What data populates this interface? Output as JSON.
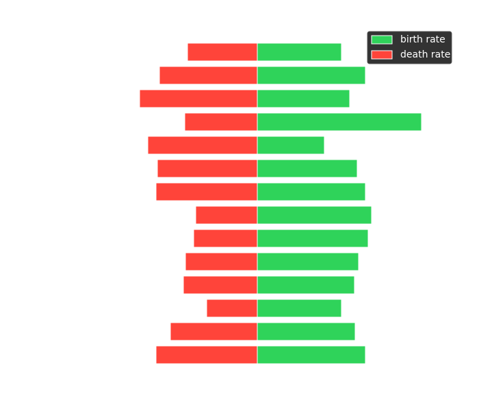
{
  "chart_data": {
    "type": "diverging-bar",
    "series": [
      {
        "name": "birth rate",
        "color": "#2fd35a",
        "values": [
          12.3,
          15.8,
          13.5,
          24.0,
          9.8,
          14.6,
          15.8,
          16.7,
          16.2,
          14.8,
          14.2,
          12.3,
          14.3,
          15.8
        ]
      },
      {
        "name": "death rate",
        "color": "#ff443a",
        "values": [
          -10.2,
          -14.3,
          -17.2,
          -10.6,
          -16.0,
          -14.6,
          -14.8,
          -9.0,
          -9.3,
          -10.5,
          -10.8,
          -7.4,
          -12.7,
          -14.8
        ]
      }
    ],
    "xlim": [
      -30,
      30
    ],
    "legend": "upper right"
  }
}
